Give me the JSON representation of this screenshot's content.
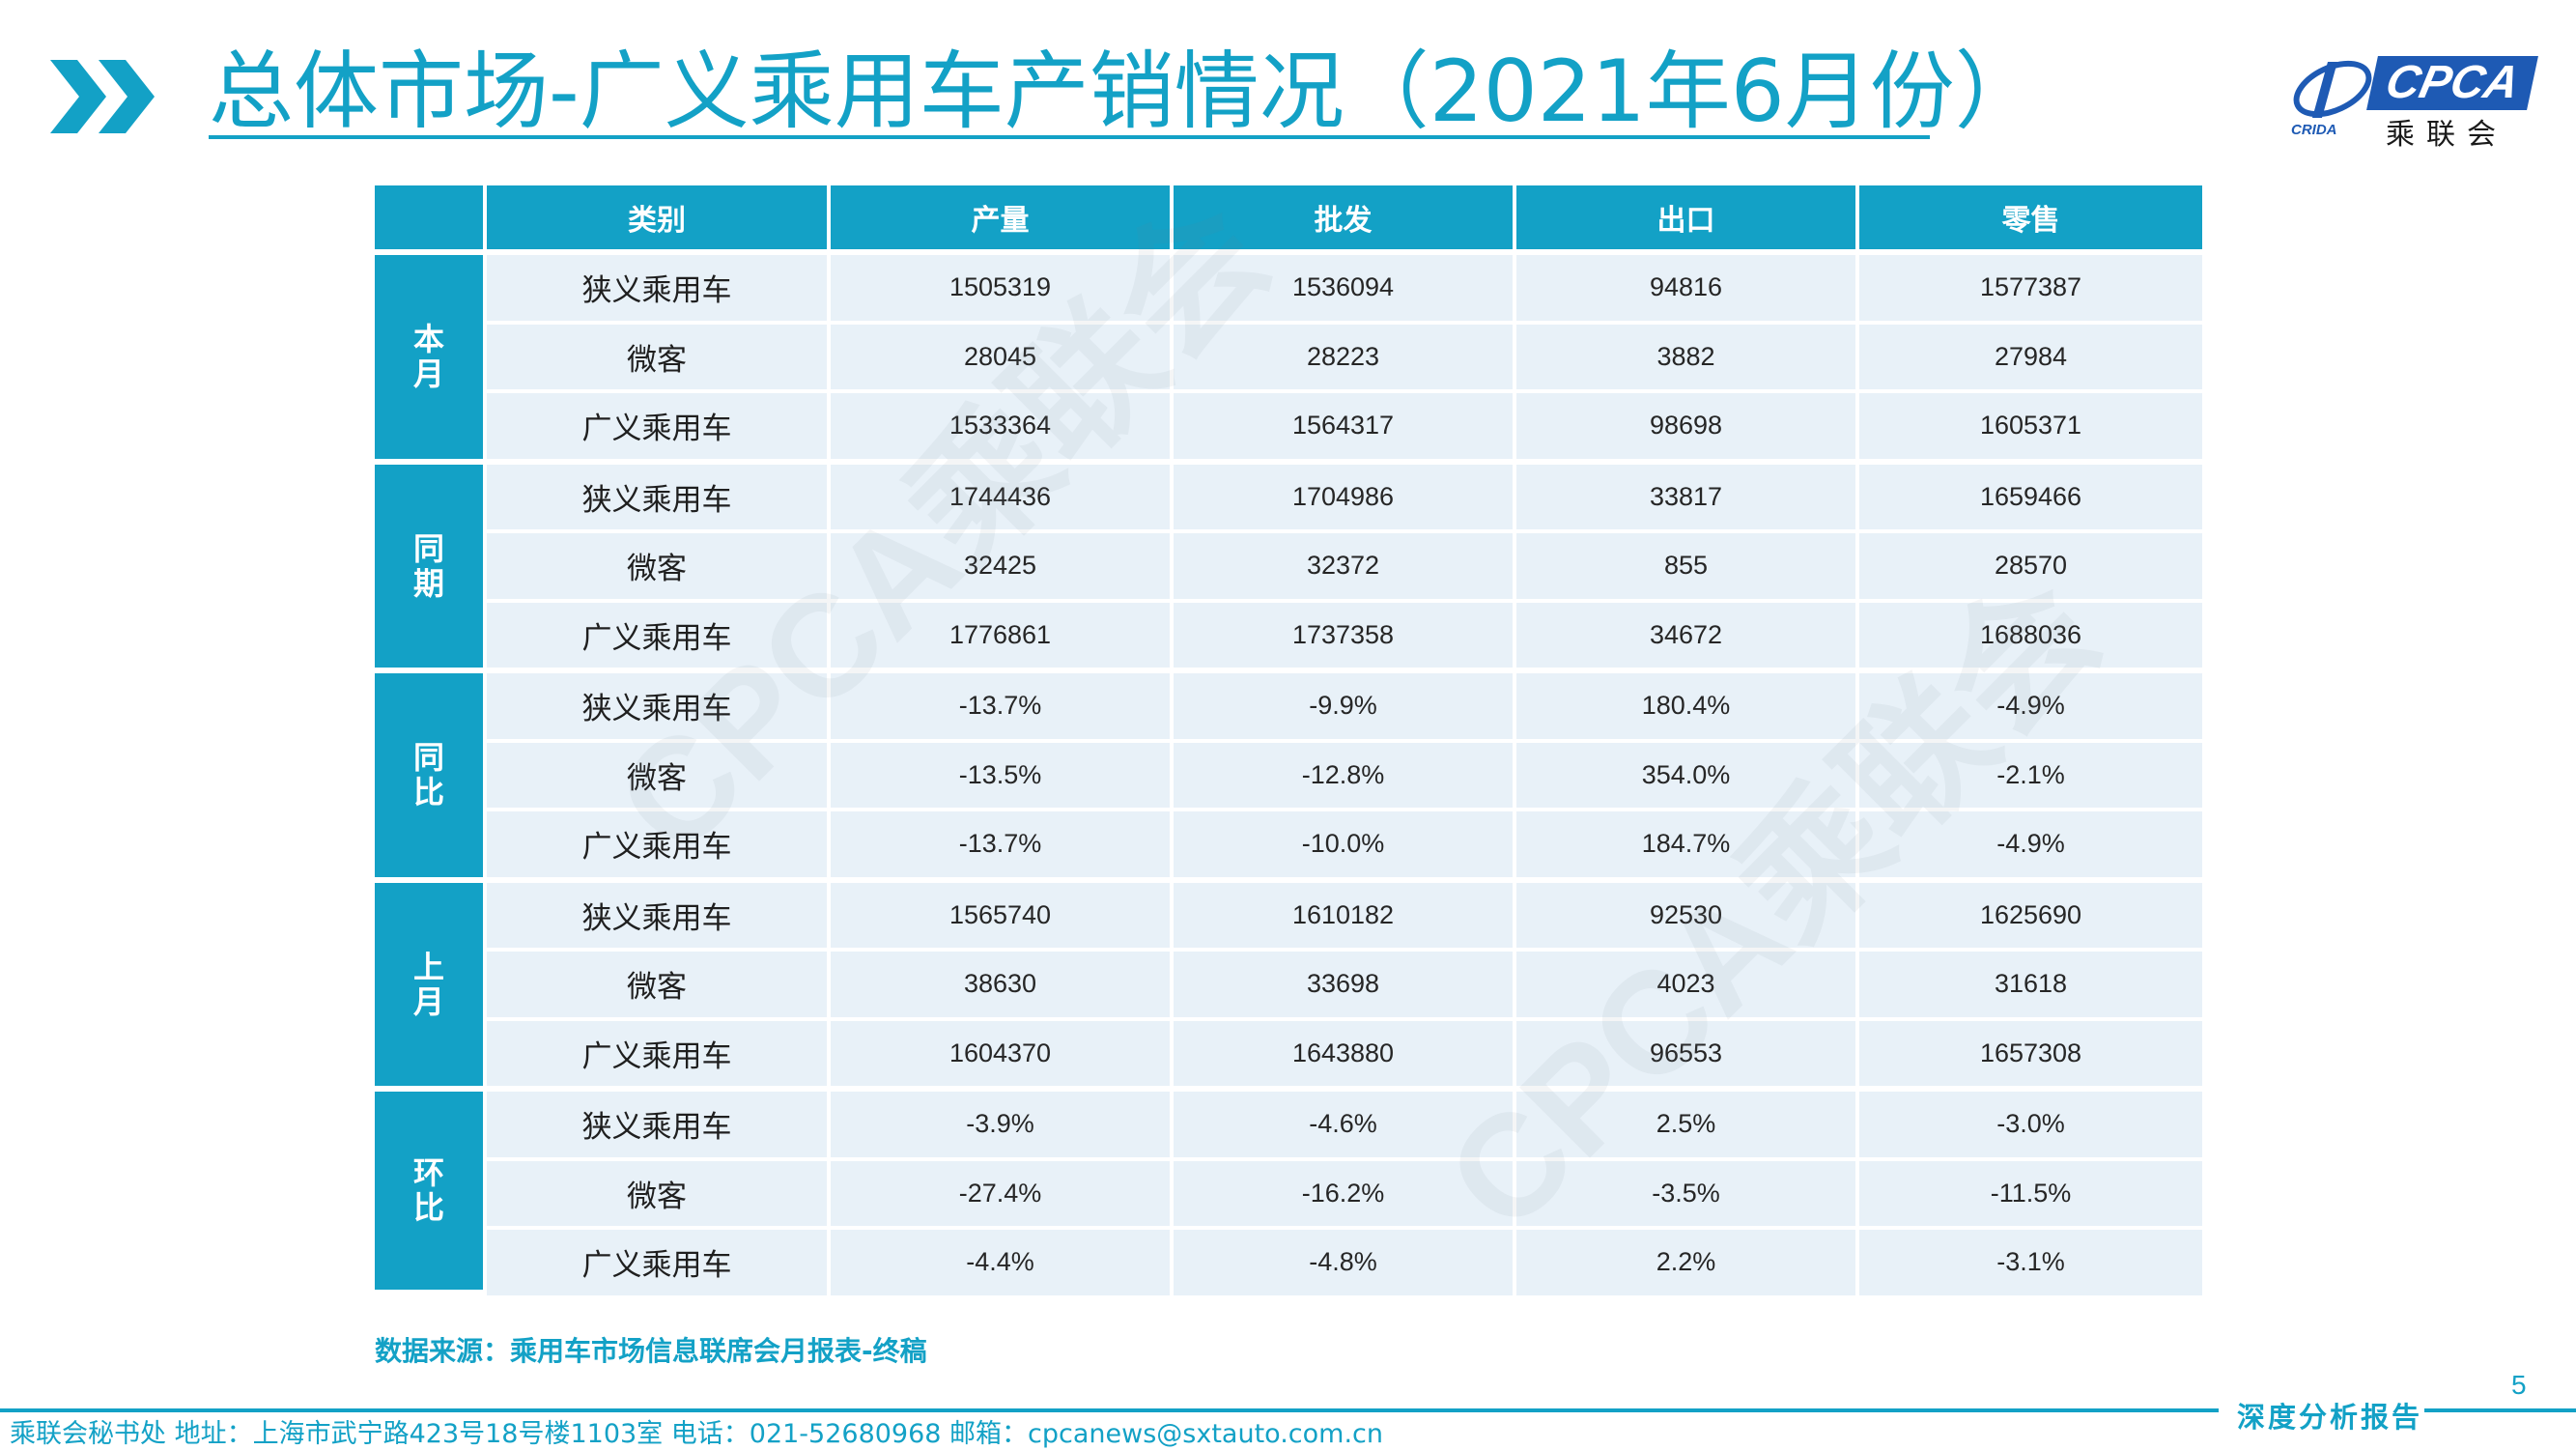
{
  "title": "总体市场-广义乘用车产销情况（2021年6月份）",
  "logo": {
    "brand": "CPCA",
    "name_cn": "乘联会",
    "small": "CRIDA"
  },
  "watermark": "CPCA乘联会",
  "table": {
    "headers": [
      "",
      "类别",
      "产量",
      "批发",
      "出口",
      "零售"
    ],
    "groups": [
      {
        "label": "本月",
        "rows": [
          {
            "category": "狭义乘用车",
            "values": [
              "1505319",
              "1536094",
              "94816",
              "1577387"
            ]
          },
          {
            "category": "微客",
            "values": [
              "28045",
              "28223",
              "3882",
              "27984"
            ]
          },
          {
            "category": "广义乘用车",
            "values": [
              "1533364",
              "1564317",
              "98698",
              "1605371"
            ]
          }
        ]
      },
      {
        "label": "同期",
        "rows": [
          {
            "category": "狭义乘用车",
            "values": [
              "1744436",
              "1704986",
              "33817",
              "1659466"
            ]
          },
          {
            "category": "微客",
            "values": [
              "32425",
              "32372",
              "855",
              "28570"
            ]
          },
          {
            "category": "广义乘用车",
            "values": [
              "1776861",
              "1737358",
              "34672",
              "1688036"
            ]
          }
        ]
      },
      {
        "label": "同比",
        "rows": [
          {
            "category": "狭义乘用车",
            "values": [
              "-13.7%",
              "-9.9%",
              "180.4%",
              "-4.9%"
            ]
          },
          {
            "category": "微客",
            "values": [
              "-13.5%",
              "-12.8%",
              "354.0%",
              "-2.1%"
            ]
          },
          {
            "category": "广义乘用车",
            "values": [
              "-13.7%",
              "-10.0%",
              "184.7%",
              "-4.9%"
            ]
          }
        ]
      },
      {
        "label": "上月",
        "rows": [
          {
            "category": "狭义乘用车",
            "values": [
              "1565740",
              "1610182",
              "92530",
              "1625690"
            ]
          },
          {
            "category": "微客",
            "values": [
              "38630",
              "33698",
              "4023",
              "31618"
            ]
          },
          {
            "category": "广义乘用车",
            "values": [
              "1604370",
              "1643880",
              "96553",
              "1657308"
            ]
          }
        ]
      },
      {
        "label": "环比",
        "rows": [
          {
            "category": "狭义乘用车",
            "values": [
              "-3.9%",
              "-4.6%",
              "2.5%",
              "-3.0%"
            ]
          },
          {
            "category": "微客",
            "values": [
              "-27.4%",
              "-16.2%",
              "-3.5%",
              "-11.5%"
            ]
          },
          {
            "category": "广义乘用车",
            "values": [
              "-4.4%",
              "-4.8%",
              "2.2%",
              "-3.1%"
            ]
          }
        ]
      }
    ]
  },
  "source": "数据来源：乘用车市场信息联席会月报表-终稿",
  "page_number": "5",
  "footer": {
    "tag": "深度分析报告",
    "contact": "乘联会秘书处   地址：上海市武宁路423号18号楼1103室   电话：021-52680968   邮箱：cpcanews@sxtauto.com.cn"
  },
  "colors": {
    "accent": "#13a1c6",
    "cell_bg": "#e8f1f8",
    "logo_blue": "#1e5ab4"
  }
}
